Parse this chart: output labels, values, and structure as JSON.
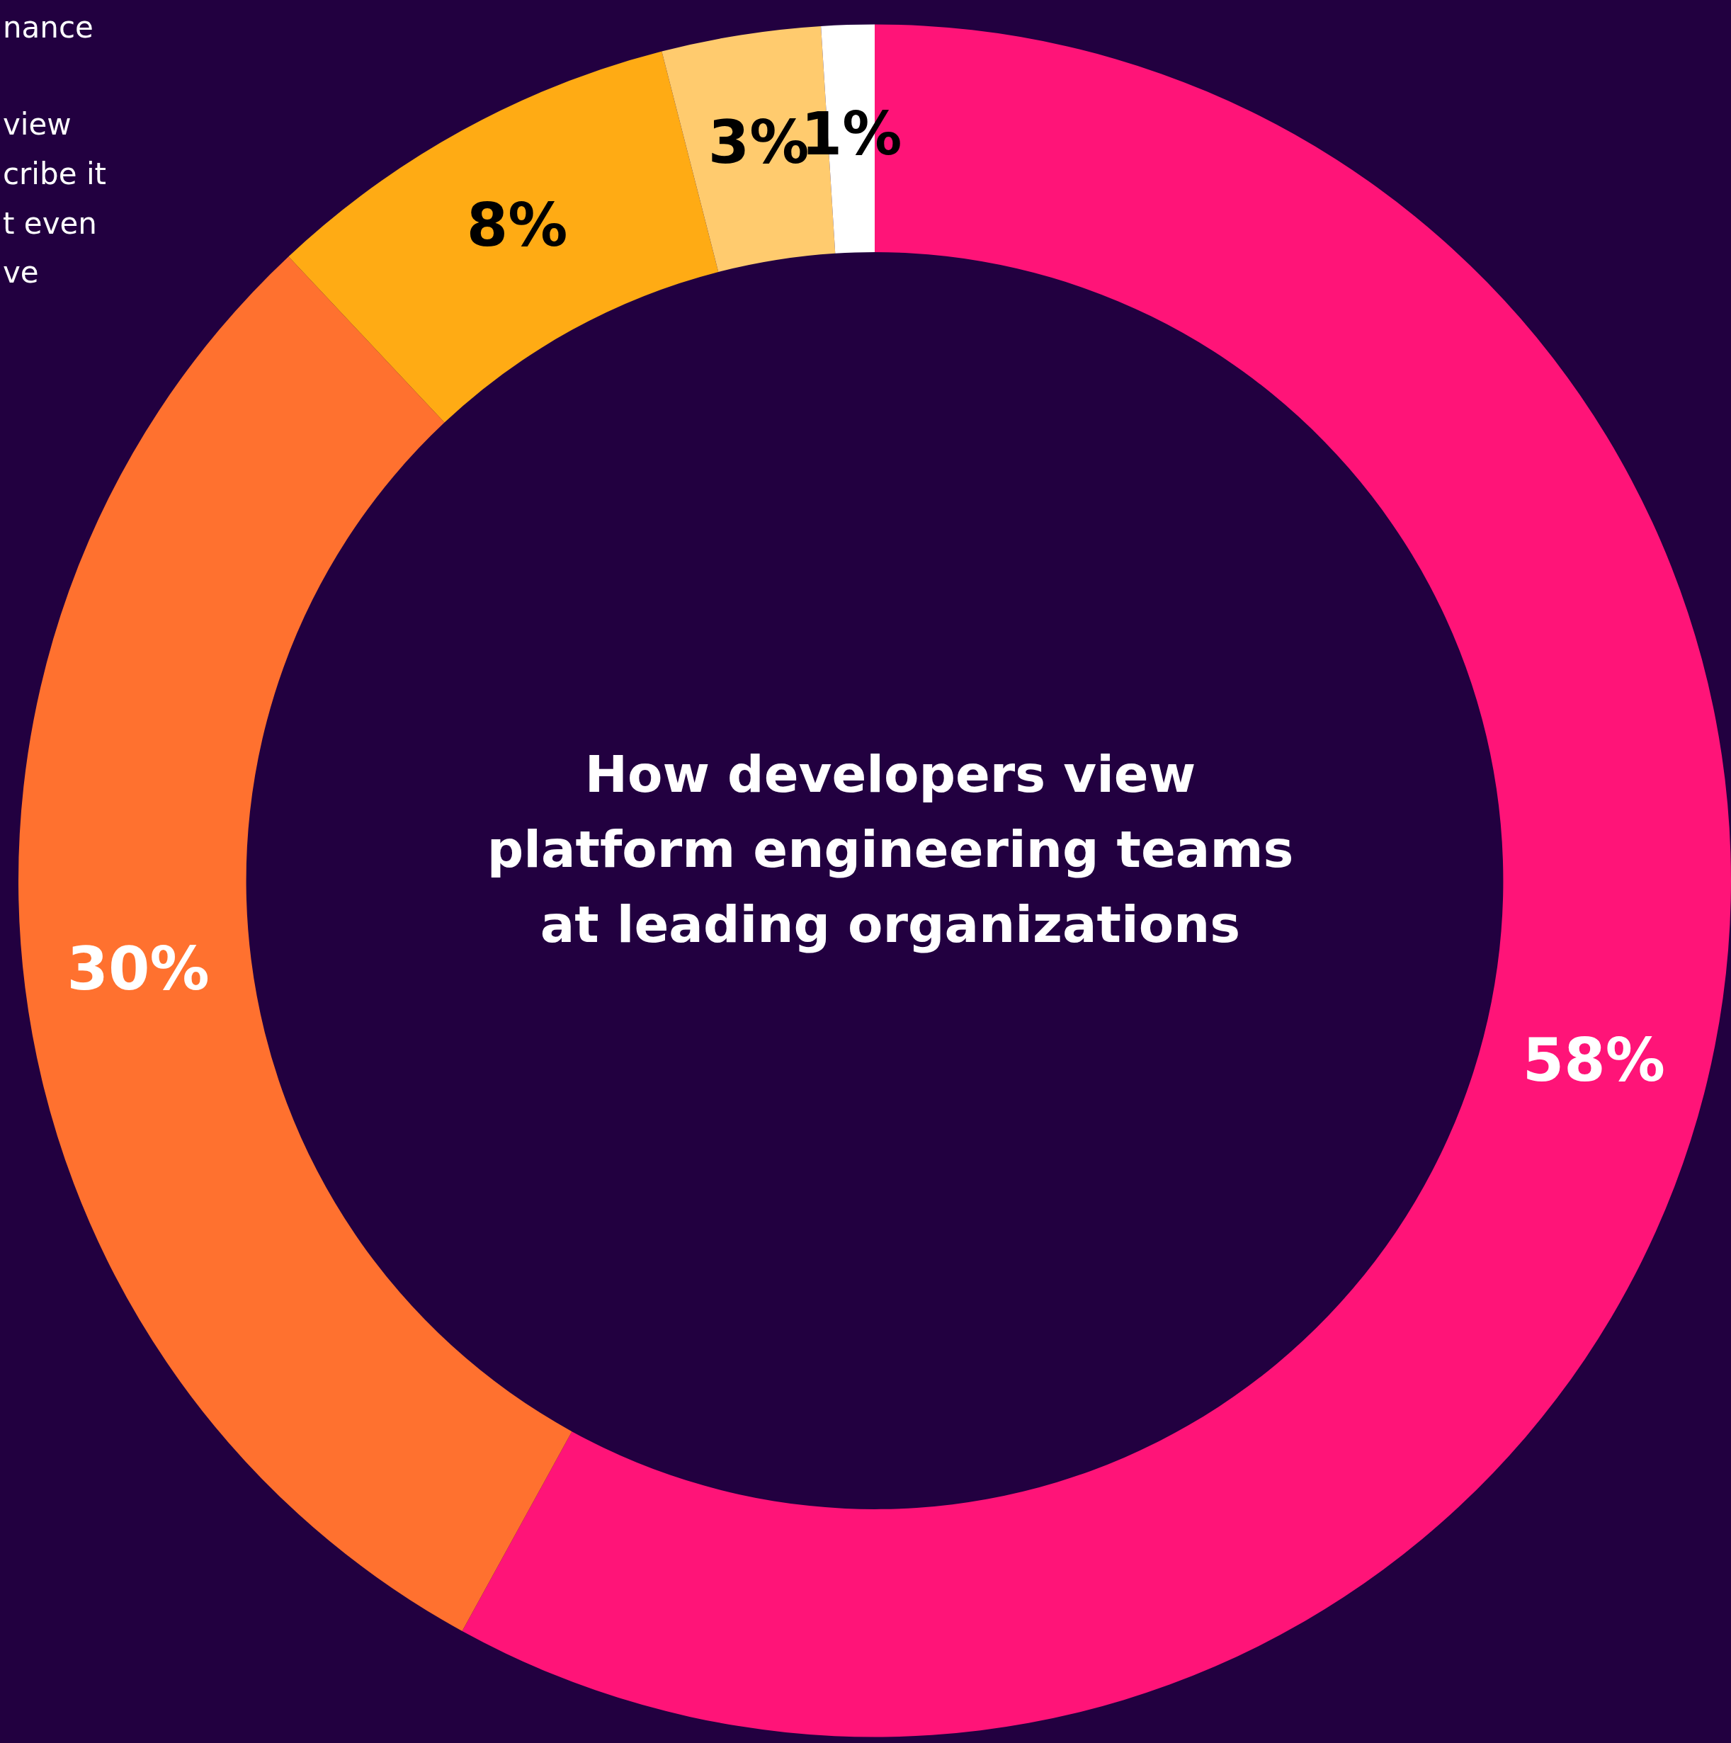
{
  "chart_data": {
    "type": "donut",
    "title": "How developers view platform engineering teams at leading organizations",
    "categories": [
      null,
      null,
      null,
      null,
      null
    ],
    "values": [
      58,
      30,
      8,
      3,
      1
    ],
    "colors": [
      "#ff1478",
      "#ff712f",
      "#ffab14",
      "#ffcb6e",
      "#ffffff"
    ],
    "value_labels": [
      "58%",
      "30%",
      "8%",
      "3%",
      "1%"
    ],
    "annotations": [
      "nance",
      "view",
      "cribe it",
      "t even",
      "ve"
    ]
  }
}
